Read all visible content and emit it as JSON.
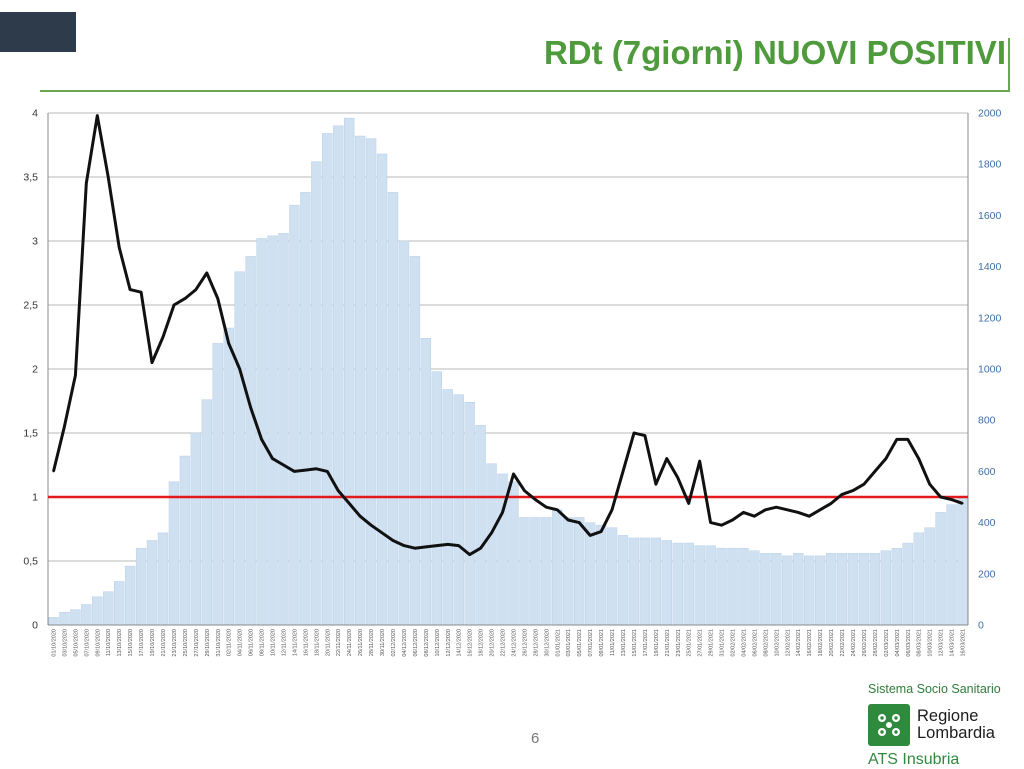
{
  "slide": {
    "title": "RDt (7giorni) NUOVI POSITIVI",
    "page_number": "6"
  },
  "footer": {
    "line1": "Sistema Socio Sanitario",
    "region_line1": "Regione",
    "region_line2": "Lombardia",
    "line4": "ATS Insubria",
    "logo_icon": "regione-lombardia-rose-icon"
  },
  "colors": {
    "bars": "#cfe0f1",
    "bars_edge": "#b9d0e9",
    "rdt_line": "#111111",
    "threshold": "#e31a1c",
    "right_axis_text": "#3e6fa6",
    "left_axis_text": "#333333",
    "title": "#4e9a3c"
  },
  "chart_data": {
    "type": "bar+line",
    "left_axis": {
      "range": [
        0,
        4
      ],
      "ticks": [
        0,
        0.5,
        1,
        1.5,
        2,
        2.5,
        3,
        3.5,
        4
      ],
      "tick_labels": [
        "0",
        "0,5",
        "1",
        "1,5",
        "2",
        "2,5",
        "3",
        "3,5",
        "4"
      ]
    },
    "right_axis": {
      "range": [
        0,
        2000
      ],
      "ticks": [
        0,
        200,
        400,
        600,
        800,
        1000,
        1200,
        1400,
        1600,
        1800,
        2000
      ],
      "tick_labels": [
        "0",
        "200",
        "400",
        "600",
        "800",
        "1000",
        "1200",
        "1400",
        "1600",
        "1800",
        "2000"
      ]
    },
    "gridlines": true,
    "threshold": 1,
    "x_dates": [
      "01/10/2020",
      "03/10/2020",
      "05/10/2020",
      "07/10/2020",
      "09/10/2020",
      "11/10/2020",
      "13/10/2020",
      "15/10/2020",
      "17/10/2020",
      "19/10/2020",
      "21/10/2020",
      "23/10/2020",
      "25/10/2020",
      "27/10/2020",
      "29/10/2020",
      "31/10/2020",
      "02/11/2020",
      "04/11/2020",
      "06/11/2020",
      "08/11/2020",
      "10/11/2020",
      "12/11/2020",
      "14/11/2020",
      "16/11/2020",
      "18/11/2020",
      "20/11/2020",
      "22/11/2020",
      "24/11/2020",
      "26/11/2020",
      "28/11/2020",
      "30/11/2020",
      "02/12/2020",
      "04/12/2020",
      "06/12/2020",
      "08/12/2020",
      "10/12/2020",
      "12/12/2020",
      "14/12/2020",
      "16/12/2020",
      "18/12/2020",
      "20/12/2020",
      "22/12/2020",
      "24/12/2020",
      "26/12/2020",
      "28/12/2020",
      "30/12/2020",
      "01/01/2021",
      "03/01/2021",
      "05/01/2021",
      "07/01/2021",
      "09/01/2021",
      "11/01/2021",
      "13/01/2021",
      "15/01/2021",
      "17/01/2021",
      "19/01/2021",
      "21/01/2021",
      "23/01/2021",
      "25/01/2021",
      "27/01/2021",
      "29/01/2021",
      "31/01/2021",
      "02/02/2021",
      "04/02/2021",
      "06/02/2021",
      "08/02/2021",
      "10/02/2021",
      "12/02/2021",
      "14/02/2021",
      "16/02/2021",
      "18/02/2021",
      "20/02/2021",
      "22/02/2021",
      "24/02/2021",
      "26/02/2021",
      "28/02/2021",
      "02/03/2021",
      "04/03/2021",
      "06/03/2021",
      "08/03/2021",
      "10/03/2021",
      "12/03/2021",
      "14/03/2021",
      "16/03/2021"
    ],
    "bars_new_positives": [
      30,
      50,
      60,
      80,
      110,
      130,
      170,
      230,
      300,
      330,
      360,
      560,
      660,
      750,
      880,
      1100,
      1160,
      1380,
      1440,
      1510,
      1520,
      1530,
      1640,
      1690,
      1810,
      1920,
      1950,
      1980,
      1910,
      1900,
      1840,
      1690,
      1500,
      1440,
      1120,
      990,
      920,
      900,
      870,
      780,
      630,
      590,
      560,
      420,
      420,
      420,
      450,
      420,
      420,
      400,
      390,
      380,
      350,
      340,
      340,
      340,
      330,
      320,
      320,
      310,
      310,
      300,
      300,
      300,
      290,
      280,
      280,
      270,
      280,
      270,
      270,
      280,
      280,
      280,
      280,
      280,
      290,
      300,
      320,
      360,
      380,
      440,
      470,
      500
    ],
    "rdt": [
      1.2,
      1.55,
      1.95,
      3.45,
      3.98,
      3.5,
      2.95,
      2.62,
      2.6,
      2.05,
      2.25,
      2.5,
      2.55,
      2.62,
      2.75,
      2.55,
      2.2,
      2.0,
      1.7,
      1.45,
      1.3,
      1.25,
      1.2,
      1.21,
      1.22,
      1.2,
      1.05,
      0.95,
      0.85,
      0.78,
      0.72,
      0.66,
      0.62,
      0.6,
      0.61,
      0.62,
      0.63,
      0.62,
      0.55,
      0.6,
      0.72,
      0.88,
      1.18,
      1.05,
      0.98,
      0.92,
      0.9,
      0.82,
      0.8,
      0.7,
      0.73,
      0.9,
      1.2,
      1.5,
      1.48,
      1.1,
      1.3,
      1.15,
      0.95,
      1.28,
      0.8,
      0.78,
      0.82,
      0.88,
      0.85,
      0.9,
      0.92,
      0.9,
      0.88,
      0.85,
      0.9,
      0.95,
      1.02,
      1.05,
      1.1,
      1.2,
      1.3,
      1.45,
      1.45,
      1.3,
      1.1,
      1.0,
      0.98,
      0.95
    ]
  }
}
